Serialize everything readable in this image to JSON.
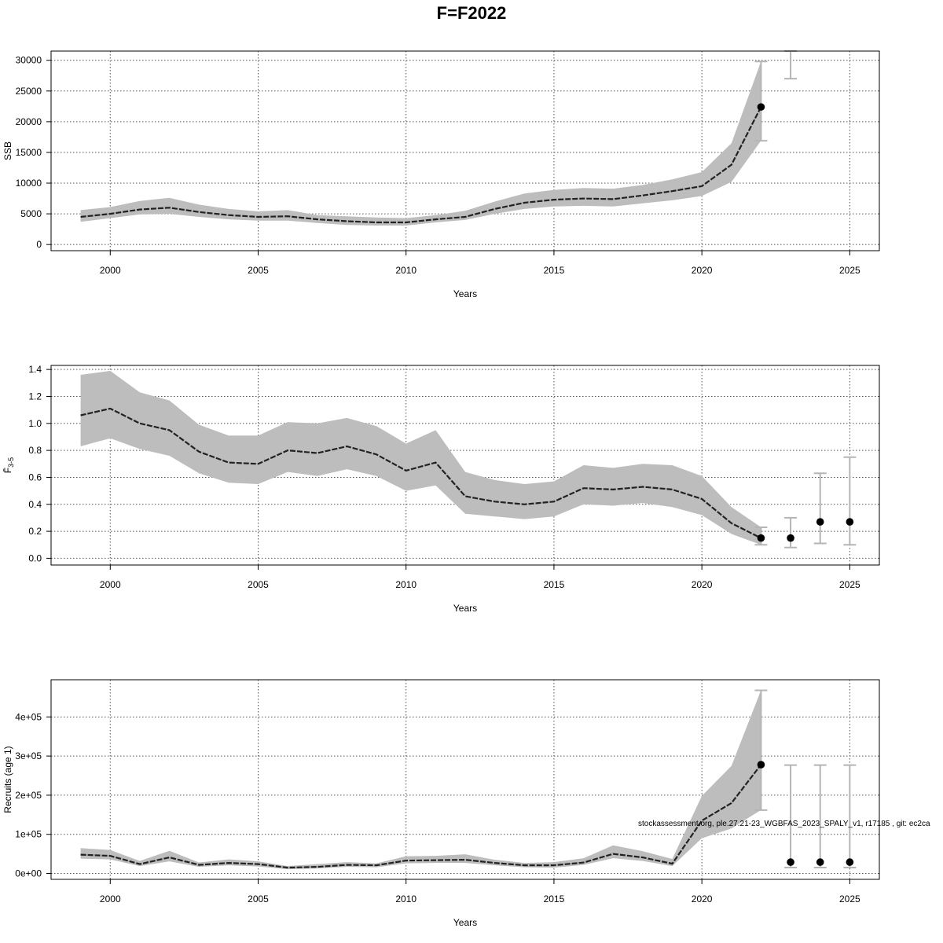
{
  "page": {
    "title": "F=F2022",
    "footer": "stockassessment.org, ple.27.21-23_WGBFAS_2023_SPALY_v1, r17185 , git: ec2ca"
  },
  "chart_data": [
    {
      "id": "ssb",
      "type": "line",
      "ylabel": "SSB",
      "xlabel": "Years",
      "xlim": [
        1998,
        2026
      ],
      "ylim": [
        -1000,
        31500
      ],
      "x_ticks": [
        2000,
        2005,
        2010,
        2015,
        2020,
        2025
      ],
      "y_ticks": [
        0,
        5000,
        10000,
        15000,
        20000,
        25000,
        30000
      ],
      "y_tick_labels": [
        "0",
        "5000",
        "10000",
        "15000",
        "20000",
        "25000",
        "30000"
      ],
      "grid": true,
      "series": [
        {
          "x": [
            1999,
            2000,
            2001,
            2002,
            2003,
            2004,
            2005,
            2006,
            2007,
            2008,
            2009,
            2010,
            2011,
            2012,
            2013,
            2014,
            2015,
            2016,
            2017,
            2018,
            2019,
            2020,
            2021,
            2022
          ],
          "estimate": [
            4500,
            5000,
            5700,
            6000,
            5300,
            4800,
            4500,
            4600,
            4100,
            3800,
            3600,
            3600,
            4100,
            4500,
            5800,
            6800,
            7300,
            7500,
            7400,
            8000,
            8700,
            9500,
            13000,
            22400
          ],
          "lower": [
            3700,
            4300,
            4900,
            5000,
            4500,
            4100,
            3900,
            3900,
            3500,
            3200,
            3100,
            3100,
            3600,
            4000,
            5000,
            5800,
            6200,
            6300,
            6200,
            6700,
            7200,
            7900,
            10200,
            16900
          ],
          "upper": [
            5600,
            6100,
            7100,
            7600,
            6500,
            5800,
            5400,
            5600,
            4800,
            4600,
            4400,
            4300,
            4800,
            5500,
            7000,
            8300,
            8900,
            9200,
            9100,
            9700,
            10600,
            11800,
            16500,
            29800
          ]
        }
      ],
      "forecast_points": [
        {
          "x": 2022,
          "y": 22400,
          "lower": 16900,
          "upper": 29800
        }
      ],
      "forecast_bars_without_point": [
        {
          "x": 2023,
          "lower": 27000,
          "upper": 31500
        }
      ]
    },
    {
      "id": "fbar",
      "type": "line",
      "ylabel": "F̄",
      "ylabel_subscript": "3-5",
      "xlabel": "Years",
      "xlim": [
        1998,
        2026
      ],
      "ylim": [
        -0.05,
        1.43
      ],
      "x_ticks": [
        2000,
        2005,
        2010,
        2015,
        2020,
        2025
      ],
      "y_ticks": [
        0.0,
        0.2,
        0.4,
        0.6,
        0.8,
        1.0,
        1.2,
        1.4
      ],
      "y_tick_labels": [
        "0.0",
        "0.2",
        "0.4",
        "0.6",
        "0.8",
        "1.0",
        "1.2",
        "1.4"
      ],
      "grid": true,
      "series": [
        {
          "x": [
            1999,
            2000,
            2001,
            2002,
            2003,
            2004,
            2005,
            2006,
            2007,
            2008,
            2009,
            2010,
            2011,
            2012,
            2013,
            2014,
            2015,
            2016,
            2017,
            2018,
            2019,
            2020,
            2021,
            2022
          ],
          "estimate": [
            1.06,
            1.11,
            1.0,
            0.95,
            0.79,
            0.71,
            0.7,
            0.8,
            0.78,
            0.83,
            0.77,
            0.65,
            0.71,
            0.46,
            0.42,
            0.4,
            0.42,
            0.52,
            0.51,
            0.53,
            0.51,
            0.44,
            0.26,
            0.15
          ],
          "lower": [
            0.83,
            0.89,
            0.81,
            0.76,
            0.63,
            0.56,
            0.55,
            0.64,
            0.61,
            0.66,
            0.61,
            0.5,
            0.54,
            0.33,
            0.31,
            0.29,
            0.31,
            0.4,
            0.39,
            0.41,
            0.38,
            0.32,
            0.18,
            0.1
          ],
          "upper": [
            1.36,
            1.39,
            1.23,
            1.17,
            0.99,
            0.91,
            0.91,
            1.01,
            1.0,
            1.04,
            0.98,
            0.85,
            0.95,
            0.64,
            0.58,
            0.55,
            0.57,
            0.69,
            0.67,
            0.7,
            0.69,
            0.61,
            0.38,
            0.23
          ]
        }
      ],
      "forecast_points": [
        {
          "x": 2022,
          "y": 0.15,
          "lower": 0.1,
          "upper": 0.23
        },
        {
          "x": 2023,
          "y": 0.15,
          "lower": 0.08,
          "upper": 0.3
        },
        {
          "x": 2024,
          "y": 0.27,
          "lower": 0.11,
          "upper": 0.63
        },
        {
          "x": 2025,
          "y": 0.27,
          "lower": 0.1,
          "upper": 0.75
        }
      ]
    },
    {
      "id": "recruits",
      "type": "line",
      "ylabel": "Recruits (age 1)",
      "xlabel": "Years",
      "xlim": [
        1998,
        2026
      ],
      "ylim": [
        -15000,
        495000
      ],
      "x_ticks": [
        2000,
        2005,
        2010,
        2015,
        2020,
        2025
      ],
      "y_ticks": [
        0,
        100000,
        200000,
        300000,
        400000
      ],
      "y_tick_labels": [
        "0e+00",
        "1e+05",
        "2e+05",
        "3e+05",
        "4e+05"
      ],
      "grid": true,
      "series": [
        {
          "x": [
            1999,
            2000,
            2001,
            2002,
            2003,
            2004,
            2005,
            2006,
            2007,
            2008,
            2009,
            2010,
            2011,
            2012,
            2013,
            2014,
            2015,
            2016,
            2017,
            2018,
            2019,
            2020,
            2021,
            2022
          ],
          "estimate": [
            48000,
            45000,
            24000,
            41000,
            22000,
            27000,
            24000,
            15000,
            17000,
            22000,
            21000,
            33000,
            34000,
            35000,
            27000,
            21000,
            21000,
            28000,
            50000,
            41000,
            25000,
            135000,
            180000,
            278000
          ],
          "lower": [
            38000,
            36000,
            19000,
            31000,
            17000,
            21000,
            18000,
            11000,
            13000,
            17000,
            16000,
            26000,
            27000,
            27000,
            21000,
            16000,
            15000,
            22000,
            39000,
            32000,
            19000,
            90000,
            115000,
            162000
          ],
          "upper": [
            65000,
            60000,
            32000,
            58000,
            28000,
            36000,
            31000,
            19000,
            24000,
            29000,
            26000,
            44000,
            45000,
            49000,
            35000,
            27000,
            29000,
            39000,
            72000,
            57000,
            37000,
            198000,
            275000,
            468000
          ]
        }
      ],
      "forecast_points": [
        {
          "x": 2022,
          "y": 278000,
          "lower": 162000,
          "upper": 468000
        },
        {
          "x": 2023,
          "y": 29000,
          "lower": 15000,
          "upper": 277000
        },
        {
          "x": 2024,
          "y": 29000,
          "lower": 15000,
          "upper": 277000
        },
        {
          "x": 2025,
          "y": 29000,
          "lower": 15000,
          "upper": 277000
        }
      ]
    }
  ]
}
